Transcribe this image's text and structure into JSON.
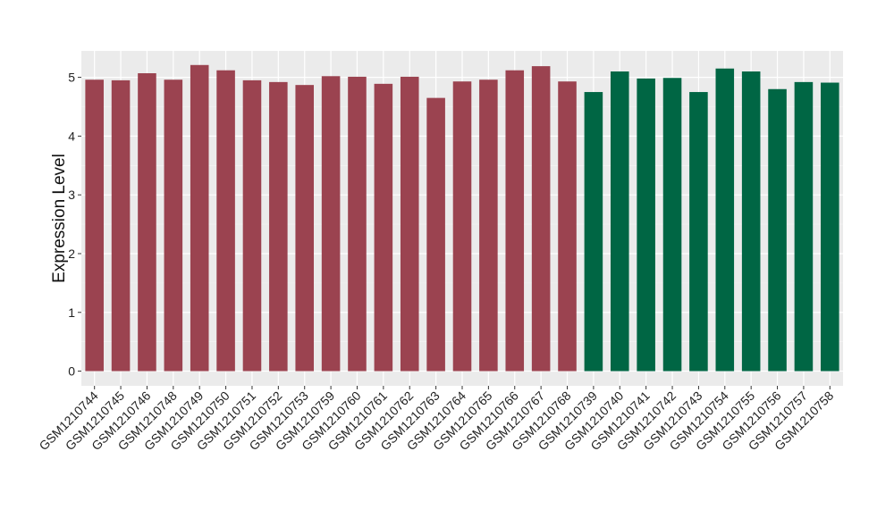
{
  "chart_data": {
    "type": "bar",
    "title": "",
    "xlabel": "",
    "ylabel": "Expression Level",
    "ylim": [
      -0.25,
      5.45
    ],
    "yticks": [
      0,
      1,
      2,
      3,
      4,
      5
    ],
    "grid": true,
    "legend": "none",
    "categories": [
      "GSM1210744",
      "GSM1210745",
      "GSM1210746",
      "GSM1210748",
      "GSM1210749",
      "GSM1210750",
      "GSM1210751",
      "GSM1210752",
      "GSM1210753",
      "GSM1210759",
      "GSM1210760",
      "GSM1210761",
      "GSM1210762",
      "GSM1210763",
      "GSM1210764",
      "GSM1210765",
      "GSM1210766",
      "GSM1210767",
      "GSM1210768",
      "GSM1210739",
      "GSM1210740",
      "GSM1210741",
      "GSM1210742",
      "GSM1210743",
      "GSM1210754",
      "GSM1210755",
      "GSM1210756",
      "GSM1210757",
      "GSM1210758"
    ],
    "values": [
      4.96,
      4.95,
      5.07,
      4.96,
      5.21,
      5.12,
      4.95,
      4.92,
      4.87,
      5.02,
      5.01,
      4.89,
      5.01,
      4.65,
      4.93,
      4.96,
      5.12,
      5.19,
      4.93,
      4.75,
      5.1,
      4.98,
      4.99,
      4.75,
      5.15,
      5.1,
      4.8,
      4.92,
      4.91
    ],
    "group_sizes": [
      19,
      10
    ],
    "colors": [
      "#9b4350",
      "#006644"
    ]
  },
  "style": {
    "panel_bg": "#ebebeb",
    "grid_major": "#ffffff",
    "grid_minor": "#f5f5f5"
  }
}
